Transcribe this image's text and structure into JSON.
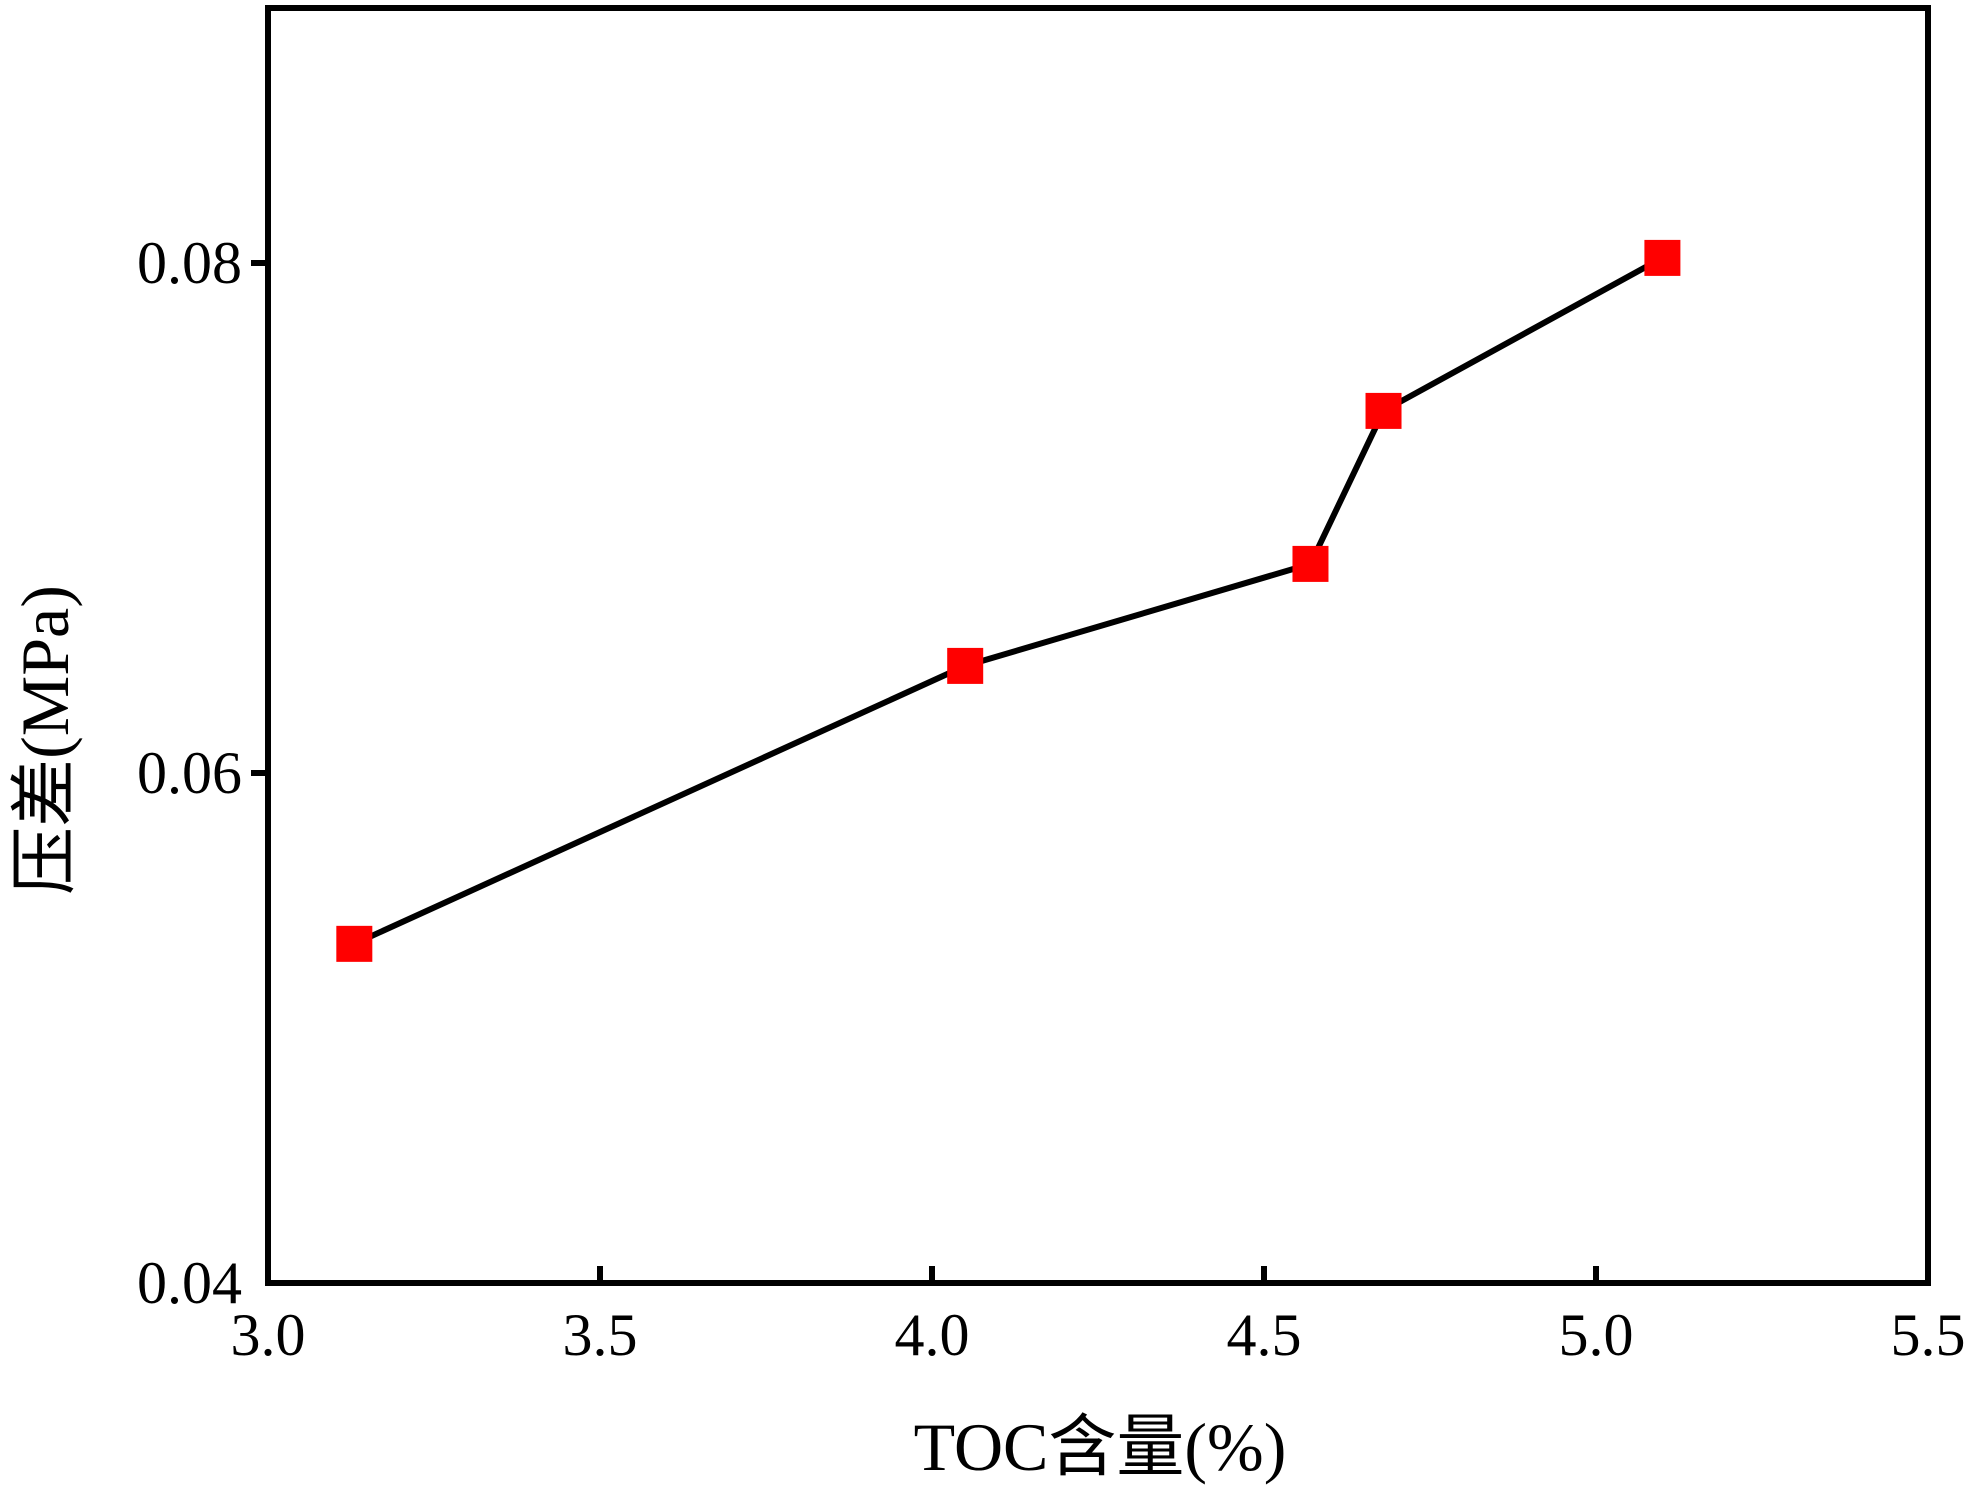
{
  "chart_data": {
    "type": "line",
    "title": "",
    "xlabel": "TOC含量(%)",
    "ylabel": "压差(MPa)",
    "xlim": [
      3.0,
      5.5
    ],
    "ylim": [
      0.04,
      0.09
    ],
    "x_ticks": [
      3.0,
      3.5,
      4.0,
      4.5,
      5.0,
      5.5
    ],
    "x_tick_labels": [
      "3.0",
      "3.5",
      "4.0",
      "4.5",
      "5.0",
      "5.5"
    ],
    "y_ticks": [
      0.04,
      0.06,
      0.08
    ],
    "y_tick_labels": [
      "0.04",
      "0.06",
      "0.08"
    ],
    "grid": false,
    "series": [
      {
        "name": "压差",
        "x": [
          3.13,
          4.05,
          4.57,
          4.68,
          5.1
        ],
        "y": [
          0.0533,
          0.0642,
          0.0682,
          0.0742,
          0.0802
        ],
        "line_color": "#000000",
        "marker": "square",
        "marker_color": "#ff0000"
      }
    ]
  }
}
